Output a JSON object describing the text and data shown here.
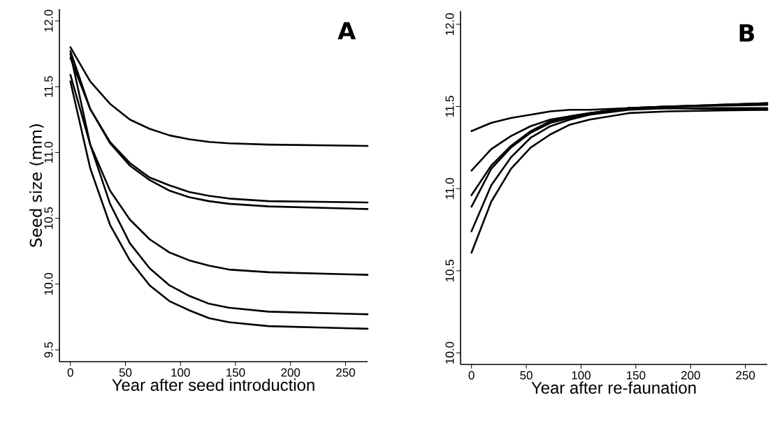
{
  "chart_data": [
    {
      "type": "line",
      "xlabel": "Year after seed introduction",
      "ylabel": "Seed size (mm)",
      "annotations": [
        "A"
      ],
      "xlim": [
        -10,
        270
      ],
      "ylim": [
        9.41,
        12.09
      ],
      "xticks": [
        0,
        50,
        100,
        150,
        200,
        250
      ],
      "yticks": [
        9.5,
        {
          "value": 10,
          "label": "10.0"
        },
        10.5,
        {
          "value": 11,
          "label": "11.0"
        },
        11.5,
        {
          "value": 12,
          "label": "12.0"
        }
      ],
      "x": [
        0,
        18,
        36,
        54,
        72,
        90,
        108,
        126,
        144,
        180,
        270
      ],
      "series": [
        {
          "color": "#000000",
          "values": [
            11.8,
            11.54,
            11.37,
            11.25,
            11.18,
            11.13,
            11.1,
            11.08,
            11.07,
            11.06,
            11.05
          ]
        },
        {
          "color": "#000000",
          "values": [
            11.77,
            11.33,
            11.08,
            10.92,
            10.81,
            10.75,
            10.7,
            10.67,
            10.65,
            10.63,
            10.62
          ]
        },
        {
          "color": "#000000",
          "values": [
            11.72,
            11.33,
            11.07,
            10.9,
            10.79,
            10.71,
            10.66,
            10.63,
            10.61,
            10.59,
            10.57
          ]
        },
        {
          "color": "#000000",
          "values": [
            11.75,
            11.06,
            10.71,
            10.49,
            10.34,
            10.24,
            10.18,
            10.14,
            10.11,
            10.09,
            10.07
          ]
        },
        {
          "color": "#000000",
          "values": [
            11.59,
            11.06,
            10.61,
            10.31,
            10.12,
            9.99,
            9.91,
            9.85,
            9.82,
            9.79,
            9.77
          ]
        },
        {
          "color": "#000000",
          "values": [
            11.54,
            10.88,
            10.45,
            10.18,
            9.99,
            9.87,
            9.8,
            9.74,
            9.71,
            9.68,
            9.66
          ]
        }
      ]
    },
    {
      "type": "line",
      "xlabel": "Year after re-faunation",
      "annotations": [
        "B"
      ],
      "xlim": [
        -10,
        270
      ],
      "ylim": [
        9.93,
        12.08
      ],
      "xticks": [
        0,
        50,
        100,
        150,
        200,
        250
      ],
      "yticks": [
        {
          "value": 10,
          "label": "10.0"
        },
        10.5,
        {
          "value": 11,
          "label": "11.0"
        },
        11.5,
        {
          "value": 12,
          "label": "12.0"
        }
      ],
      "x": [
        0,
        18,
        36,
        54,
        72,
        90,
        108,
        144,
        180,
        270
      ],
      "series": [
        {
          "color": "#000000",
          "values": [
            11.35,
            11.4,
            11.43,
            11.45,
            11.47,
            11.48,
            11.48,
            11.49,
            11.49,
            11.49
          ]
        },
        {
          "color": "#000000",
          "values": [
            11.11,
            11.24,
            11.32,
            11.38,
            11.42,
            11.44,
            11.46,
            11.49,
            11.5,
            11.51
          ]
        },
        {
          "color": "#000000",
          "values": [
            10.96,
            11.14,
            11.26,
            11.35,
            11.41,
            11.44,
            11.46,
            11.49,
            11.5,
            11.52
          ]
        },
        {
          "color": "#000000",
          "values": [
            10.89,
            11.12,
            11.25,
            11.34,
            11.4,
            11.43,
            11.46,
            11.49,
            11.5,
            11.52
          ]
        },
        {
          "color": "#000000",
          "values": [
            10.74,
            11.02,
            11.19,
            11.31,
            11.38,
            11.42,
            11.45,
            11.48,
            11.49,
            11.48
          ]
        },
        {
          "color": "#000000",
          "values": [
            10.61,
            10.92,
            11.12,
            11.25,
            11.33,
            11.39,
            11.42,
            11.46,
            11.47,
            11.48
          ]
        }
      ]
    }
  ]
}
